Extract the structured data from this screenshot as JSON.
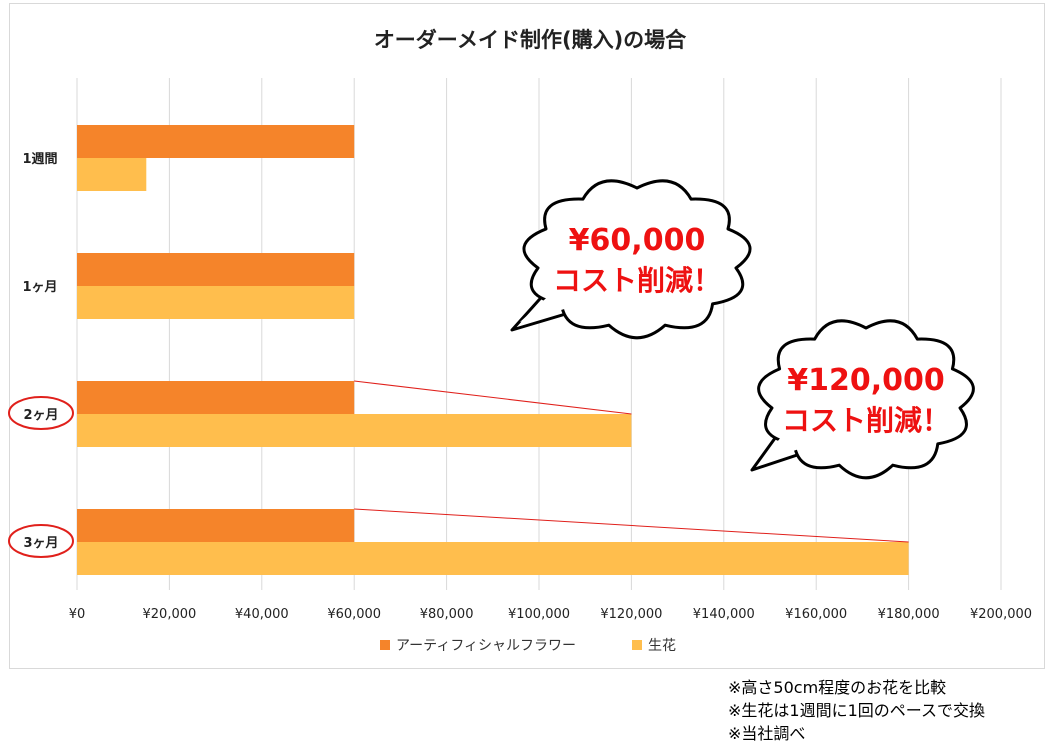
{
  "chart_data": {
    "type": "bar",
    "orientation": "horizontal",
    "title": "オーダーメイド制作(購入)の場合",
    "categories": [
      "1週間",
      "1ヶ月",
      "2ヶ月",
      "3ヶ月"
    ],
    "highlighted_categories": [
      "2ヶ月",
      "3ヶ月"
    ],
    "series": [
      {
        "name": "アーティフィシャルフラワー",
        "color": "#f5842a",
        "values": [
          60000,
          60000,
          60000,
          60000
        ]
      },
      {
        "name": "生花",
        "color": "#ffbe4d",
        "values": [
          15000,
          60000,
          120000,
          180000
        ]
      }
    ],
    "x_ticks": [
      "¥0",
      "¥20,000",
      "¥40,000",
      "¥60,000",
      "¥80,000",
      "¥100,000",
      "¥120,000",
      "¥140,000",
      "¥160,000",
      "¥180,000",
      "¥200,000"
    ],
    "xlim": [
      0,
      200000
    ],
    "grid": true,
    "legend_position": "bottom",
    "annotations": [
      {
        "category": "2ヶ月",
        "line1": "¥60,000",
        "line2": "コスト削減！"
      },
      {
        "category": "3ヶ月",
        "line1": "¥120,000",
        "line2": "コスト削減！"
      }
    ]
  },
  "footnotes": [
    "※高さ50cm程度のお花を比較",
    "※生花は1週間に1回のペースで交換",
    "※当社調べ"
  ],
  "colors": {
    "grid": "#d9d9d9",
    "highlight_ring": "#e0201b",
    "callout_text": "#ee1111",
    "connector": "#e0201b"
  }
}
